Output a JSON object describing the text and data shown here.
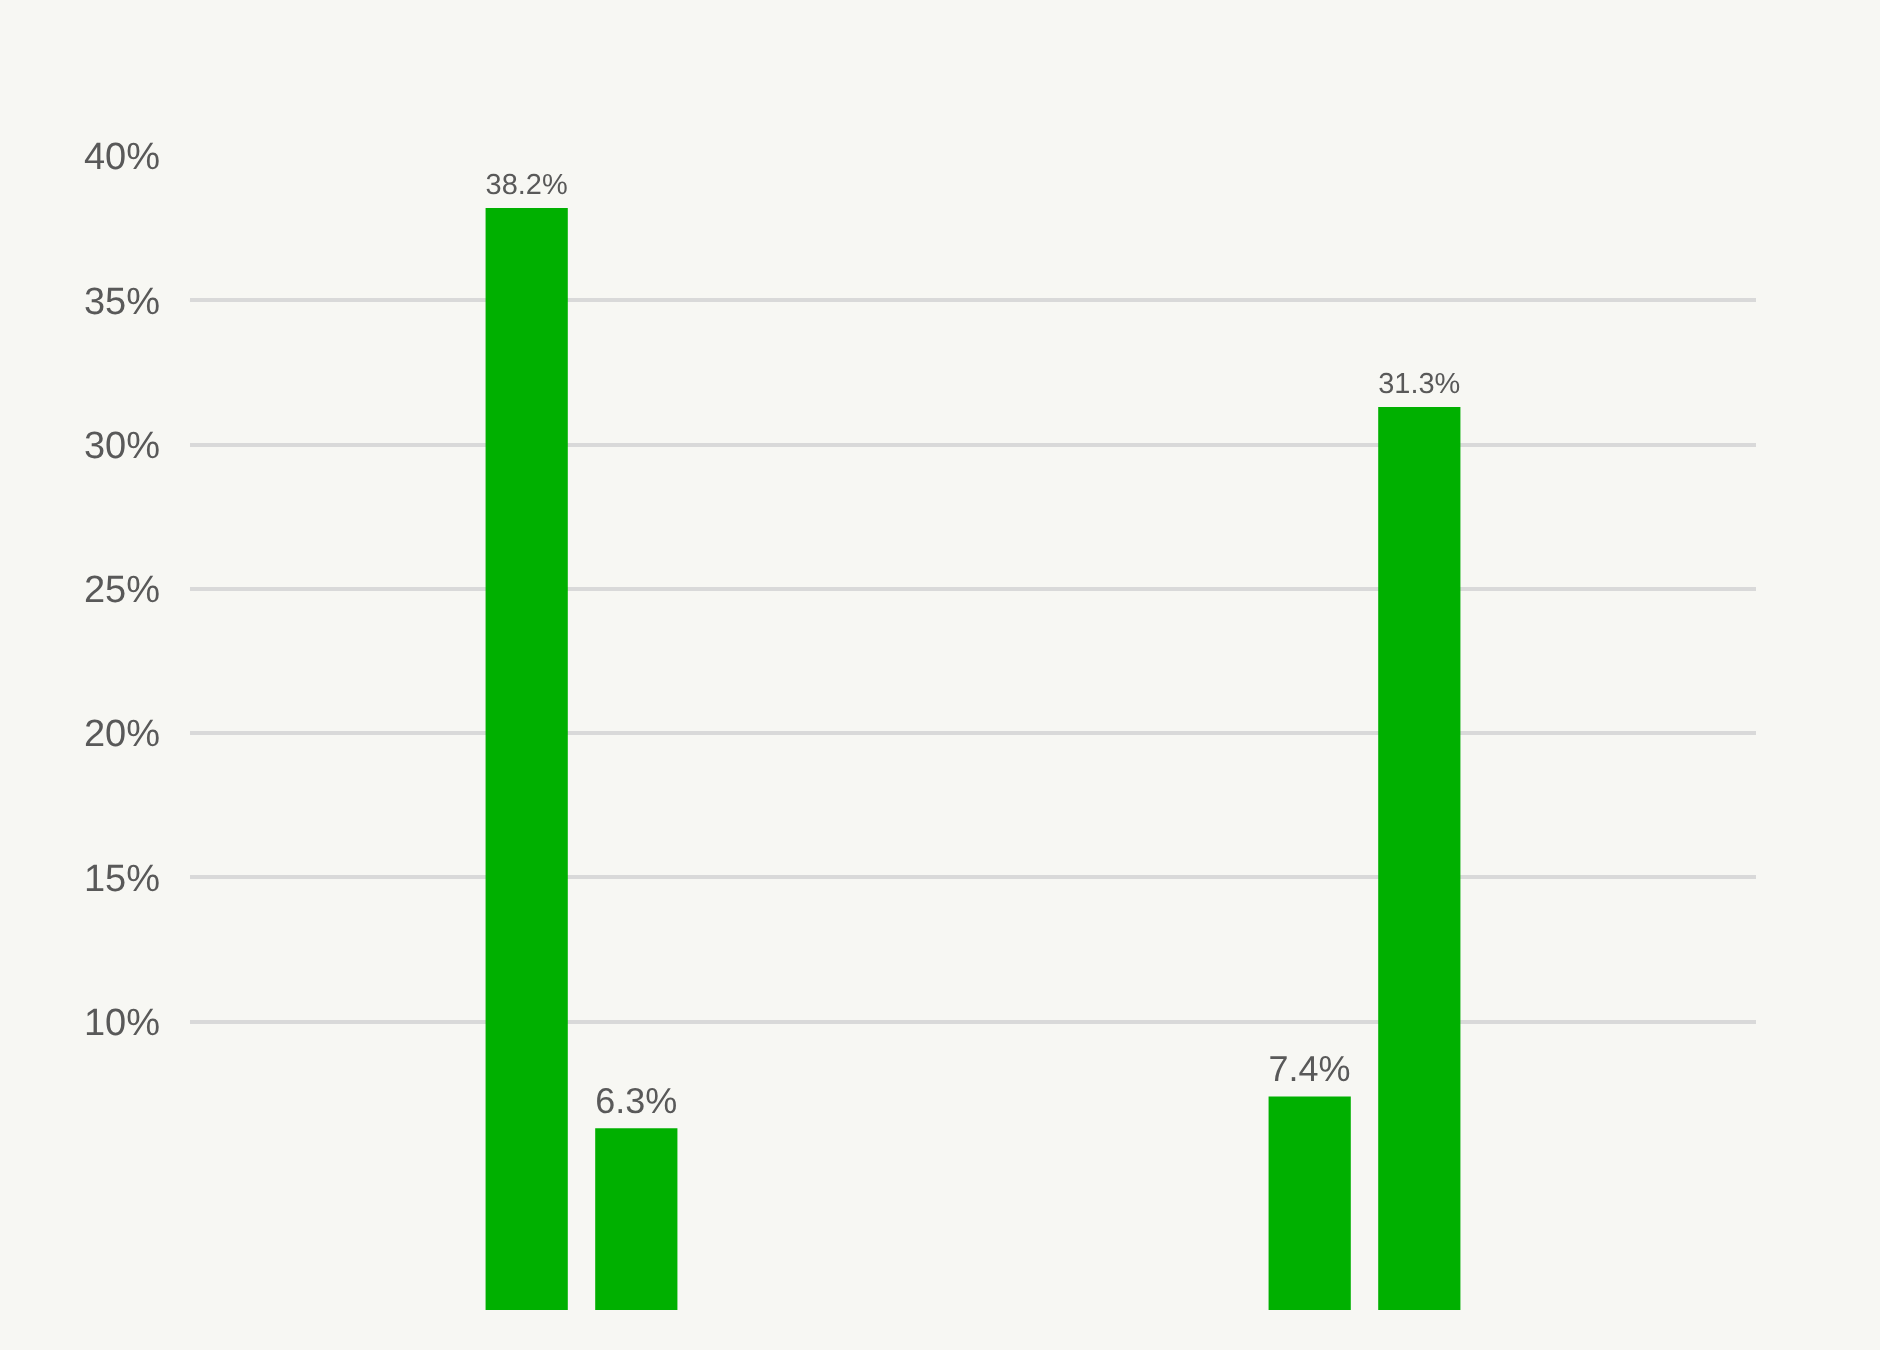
{
  "chart_data": {
    "type": "bar",
    "categories": [
      null,
      null
    ],
    "series": [
      {
        "color": "#00b000",
        "values": [
          38.2,
          7.4
        ],
        "value_labels": [
          "38.2%",
          "7.4%"
        ]
      },
      {
        "color": "#00b000",
        "values": [
          6.3,
          31.3
        ],
        "value_labels": [
          "6.3%",
          "31.3%"
        ]
      }
    ],
    "ylim": [
      0,
      40
    ],
    "yticks": [
      {
        "value": 10,
        "label": "10%"
      },
      {
        "value": 15,
        "label": "15%"
      },
      {
        "value": 20,
        "label": "20%"
      },
      {
        "value": 25,
        "label": "25%"
      },
      {
        "value": 30,
        "label": "30%"
      },
      {
        "value": 35,
        "label": "35%"
      },
      {
        "value": 40,
        "label": "40%"
      }
    ],
    "grid": "y",
    "tick_labels": "y"
  }
}
